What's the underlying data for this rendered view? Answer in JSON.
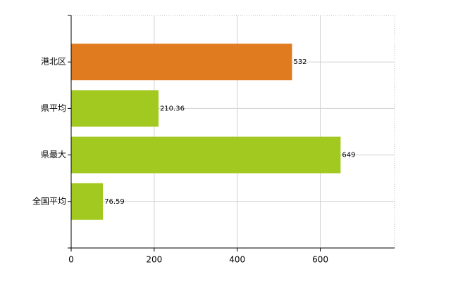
{
  "chart_data": {
    "type": "hbar",
    "categories": [
      "港北区",
      "県平均",
      "県最大",
      "全国平均"
    ],
    "values": [
      532,
      210.36,
      649,
      76.59
    ],
    "colors": [
      "#e07b1f",
      "#a2c91f",
      "#a2c91f",
      "#a2c91f"
    ],
    "xlim": [
      0,
      779
    ],
    "xticks": [
      0,
      200,
      400,
      600
    ],
    "grid": true
  }
}
